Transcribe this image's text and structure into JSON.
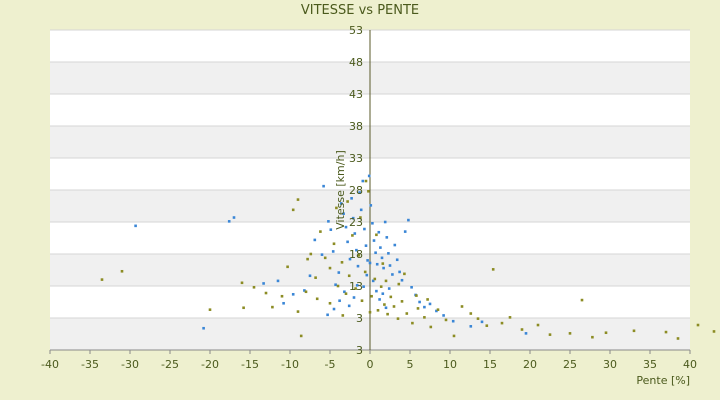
{
  "chart_data": {
    "type": "scatter",
    "title": "VITESSE vs PENTE",
    "xlabel": "Pente [%]",
    "ylabel": "Vitesse [km/h]",
    "xlim": [
      -40,
      40
    ],
    "ylim": [
      3,
      53
    ],
    "x_ticks": [
      "-40",
      "-35",
      "-30",
      "-25",
      "-20",
      "-15",
      "-10",
      "-5",
      "0",
      "5",
      "10",
      "15",
      "20",
      "25",
      "30",
      "35",
      "40"
    ],
    "y_ticks": [
      "3",
      "3",
      "13",
      "18",
      "23",
      "28",
      "33",
      "38",
      "43",
      "48",
      "53"
    ],
    "grid": true,
    "legend": "none",
    "colors": {
      "background": "#eef0cf",
      "plot_band_light": "#ffffff",
      "plot_band_dark": "#f0f0f0",
      "series_blue": "#3a86d6",
      "series_olive": "#8c8c24",
      "text": "#4b5a1d",
      "zero_axis": "#5a5a2a"
    },
    "series": [
      {
        "color": "#3a86d6",
        "points": [
          [
            -29.3,
            22.4
          ],
          [
            -17.6,
            23.1
          ],
          [
            -17.0,
            23.7
          ],
          [
            -20.8,
            6.4
          ],
          [
            -13.3,
            13.4
          ],
          [
            -11.5,
            13.8
          ],
          [
            -10.8,
            10.3
          ],
          [
            -9.6,
            11.7
          ],
          [
            -8.2,
            12.3
          ],
          [
            -7.5,
            14.6
          ],
          [
            -6.9,
            20.2
          ],
          [
            -6.0,
            17.9
          ],
          [
            -5.8,
            28.6
          ],
          [
            -5.2,
            23.1
          ],
          [
            -4.9,
            21.8
          ],
          [
            -4.6,
            18.4
          ],
          [
            -4.3,
            13.2
          ],
          [
            -3.9,
            15.1
          ],
          [
            -3.6,
            25.9
          ],
          [
            -3.3,
            24.3
          ],
          [
            -3.0,
            22.2
          ],
          [
            -2.8,
            19.9
          ],
          [
            -2.5,
            17.2
          ],
          [
            -2.3,
            26.7
          ],
          [
            -2.1,
            23.6
          ],
          [
            -1.9,
            21.2
          ],
          [
            -1.7,
            18.6
          ],
          [
            -1.5,
            16.1
          ],
          [
            -1.3,
            27.6
          ],
          [
            -1.1,
            24.9
          ],
          [
            -0.9,
            29.4
          ],
          [
            -0.7,
            21.9
          ],
          [
            -0.5,
            19.3
          ],
          [
            -0.3,
            17.0
          ],
          [
            -0.1,
            30.2
          ],
          [
            0.1,
            25.6
          ],
          [
            0.3,
            22.8
          ],
          [
            0.5,
            20.1
          ],
          [
            0.7,
            18.2
          ],
          [
            0.9,
            16.4
          ],
          [
            1.1,
            21.4
          ],
          [
            1.3,
            19.0
          ],
          [
            1.5,
            17.4
          ],
          [
            1.7,
            15.8
          ],
          [
            1.9,
            23.0
          ],
          [
            2.1,
            20.6
          ],
          [
            2.3,
            18.1
          ],
          [
            2.5,
            16.2
          ],
          [
            2.8,
            14.8
          ],
          [
            3.1,
            19.4
          ],
          [
            3.4,
            17.1
          ],
          [
            3.7,
            15.2
          ],
          [
            4.0,
            13.9
          ],
          [
            4.4,
            21.5
          ],
          [
            4.8,
            23.3
          ],
          [
            5.2,
            12.8
          ],
          [
            5.7,
            11.6
          ],
          [
            6.2,
            10.5
          ],
          [
            6.8,
            9.7
          ],
          [
            7.5,
            10.2
          ],
          [
            8.3,
            9.1
          ],
          [
            9.2,
            8.4
          ],
          [
            10.4,
            7.5
          ],
          [
            12.6,
            6.7
          ],
          [
            14.0,
            7.4
          ],
          [
            19.5,
            5.6
          ],
          [
            -2.2,
            2.6
          ],
          [
            3.0,
            2.8
          ],
          [
            -0.8,
            12.9
          ],
          [
            -0.4,
            14.7
          ],
          [
            0.0,
            16.6
          ],
          [
            0.4,
            13.8
          ],
          [
            0.8,
            12.2
          ],
          [
            1.2,
            10.9
          ],
          [
            1.6,
            11.8
          ],
          [
            2.0,
            9.6
          ],
          [
            2.4,
            12.6
          ],
          [
            -1.6,
            13.1
          ],
          [
            -2.0,
            11.2
          ],
          [
            -2.6,
            9.9
          ],
          [
            -3.2,
            12.1
          ],
          [
            -3.8,
            10.7
          ],
          [
            -4.5,
            9.4
          ],
          [
            -5.3,
            8.5
          ]
        ]
      },
      {
        "color": "#8c8c24",
        "points": [
          [
            -33.5,
            14.0
          ],
          [
            -31.0,
            15.3
          ],
          [
            -16.0,
            13.5
          ],
          [
            -14.5,
            12.8
          ],
          [
            -13.0,
            11.9
          ],
          [
            -12.2,
            9.7
          ],
          [
            -11.0,
            11.4
          ],
          [
            -10.3,
            16.0
          ],
          [
            -9.6,
            24.9
          ],
          [
            -9.0,
            26.5
          ],
          [
            -8.6,
            5.2
          ],
          [
            -8.0,
            12.1
          ],
          [
            -7.4,
            18.0
          ],
          [
            -6.8,
            14.3
          ],
          [
            -6.2,
            21.5
          ],
          [
            -5.6,
            17.4
          ],
          [
            -5.0,
            15.8
          ],
          [
            -4.5,
            19.6
          ],
          [
            -4.0,
            13.0
          ],
          [
            -3.5,
            16.7
          ],
          [
            -3.0,
            11.8
          ],
          [
            -2.6,
            14.6
          ],
          [
            -2.2,
            20.9
          ],
          [
            -1.8,
            12.6
          ],
          [
            -1.4,
            17.8
          ],
          [
            -1.0,
            10.7
          ],
          [
            -0.6,
            15.2
          ],
          [
            -0.2,
            27.8
          ],
          [
            0.2,
            11.4
          ],
          [
            0.6,
            14.1
          ],
          [
            1.0,
            9.2
          ],
          [
            1.4,
            12.9
          ],
          [
            1.8,
            10.1
          ],
          [
            2.2,
            8.6
          ],
          [
            2.6,
            11.3
          ],
          [
            3.0,
            9.8
          ],
          [
            3.5,
            7.9
          ],
          [
            4.0,
            10.6
          ],
          [
            4.6,
            8.7
          ],
          [
            5.3,
            7.2
          ],
          [
            6.0,
            9.5
          ],
          [
            6.8,
            8.1
          ],
          [
            7.6,
            6.6
          ],
          [
            8.5,
            9.3
          ],
          [
            9.5,
            7.7
          ],
          [
            10.5,
            5.2
          ],
          [
            11.5,
            9.8
          ],
          [
            12.6,
            8.7
          ],
          [
            13.5,
            7.9
          ],
          [
            14.6,
            6.8
          ],
          [
            15.4,
            15.6
          ],
          [
            16.5,
            7.2
          ],
          [
            17.5,
            8.1
          ],
          [
            19.0,
            6.2
          ],
          [
            21.0,
            6.9
          ],
          [
            22.5,
            5.4
          ],
          [
            25.0,
            5.6
          ],
          [
            26.5,
            10.8
          ],
          [
            27.8,
            5.0
          ],
          [
            29.5,
            5.7
          ],
          [
            33.0,
            6.0
          ],
          [
            37.0,
            5.8
          ],
          [
            38.5,
            4.8
          ],
          [
            41.0,
            6.9
          ],
          [
            43.0,
            5.9
          ],
          [
            -20.0,
            9.3
          ],
          [
            -15.8,
            9.6
          ],
          [
            -9.0,
            9.0
          ],
          [
            -5.0,
            10.3
          ],
          [
            0.0,
            8.9
          ],
          [
            2.0,
            13.8
          ],
          [
            -2.8,
            26.2
          ],
          [
            -0.5,
            29.4
          ],
          [
            0.8,
            21.0
          ],
          [
            -1.2,
            23.7
          ],
          [
            -3.4,
            8.4
          ],
          [
            3.6,
            13.3
          ],
          [
            5.8,
            11.5
          ],
          [
            7.2,
            10.9
          ],
          [
            -6.6,
            11.0
          ],
          [
            -7.8,
            17.2
          ],
          [
            -4.2,
            25.2
          ],
          [
            1.6,
            16.5
          ],
          [
            4.3,
            14.9
          ]
        ]
      }
    ]
  }
}
